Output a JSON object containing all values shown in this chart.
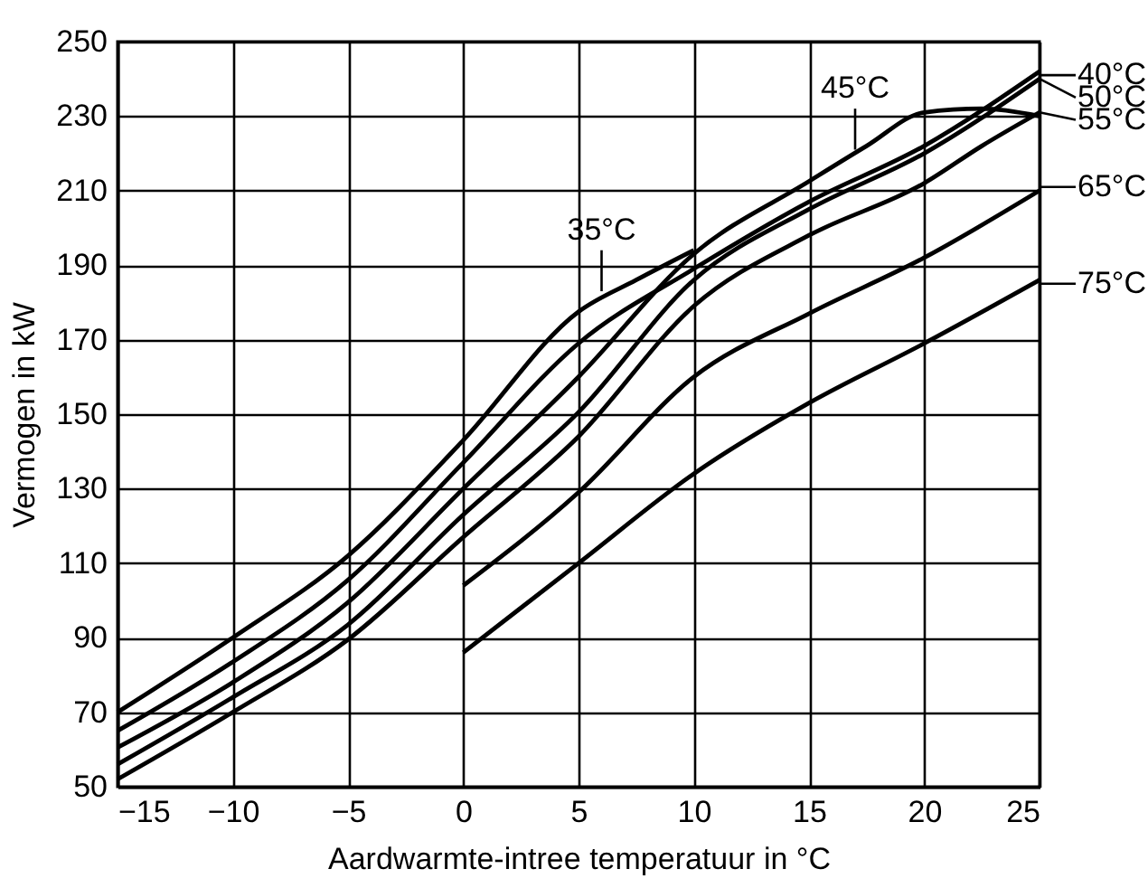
{
  "chart_data": {
    "type": "line",
    "xlabel": "Aardwarmte-intree temperatuur in °C",
    "ylabel": "Vermogen in kW",
    "x": [
      -15,
      -10,
      -5,
      0,
      5,
      7.5,
      10,
      15,
      17.5,
      20,
      22.5,
      25
    ],
    "series": [
      {
        "color": "#000000",
        "values": [
          70,
          90,
          112,
          143,
          177.5,
          186,
          194,
          null,
          null,
          null,
          null,
          null
        ]
      },
      {
        "color": "#000000",
        "values": [
          65,
          83.5,
          105.5,
          137,
          169,
          null,
          189,
          207,
          null,
          222,
          null,
          242
        ]
      },
      {
        "color": "#000000",
        "values": [
          60.5,
          78,
          99.5,
          130,
          160,
          null,
          193,
          212.5,
          222,
          231,
          232,
          230
        ]
      },
      {
        "color": "#000000",
        "values": [
          56,
          74,
          93.5,
          123,
          150.5,
          null,
          186,
          205,
          null,
          220,
          null,
          240
        ]
      },
      {
        "color": "#000000",
        "values": [
          52,
          70,
          89.5,
          117,
          144,
          null,
          179,
          198,
          null,
          212,
          222,
          231
        ]
      },
      {
        "color": "#000000",
        "values": [
          null,
          null,
          null,
          104,
          129,
          null,
          160,
          177,
          null,
          192,
          null,
          210
        ]
      },
      {
        "color": "#000000",
        "values": [
          null,
          null,
          null,
          86,
          110,
          null,
          134,
          153,
          null,
          169,
          null,
          186
        ]
      }
    ],
    "xlim": [
      -15,
      25
    ],
    "xticks": [
      -15,
      -10,
      -5,
      0,
      5,
      10,
      15,
      20,
      25
    ],
    "ylim": [
      50,
      250
    ],
    "yticks": [
      50,
      70,
      90,
      110,
      130,
      150,
      170,
      190,
      210,
      230,
      250
    ],
    "grid": true,
    "line_style": "solid",
    "marker": "none",
    "annotations": [
      {
        "text": "35°C",
        "x": 6,
        "y": 183
      },
      {
        "text": "45°C",
        "x": 17,
        "y": 221
      },
      {
        "text": "40°C",
        "x": 25,
        "y": 241
      },
      {
        "text": "50°C",
        "x": 25,
        "y": 240
      },
      {
        "text": "55°C",
        "x": 25,
        "y": 231
      },
      {
        "text": "65°C",
        "x": 25,
        "y": 211
      },
      {
        "text": "75°C",
        "x": 25,
        "y": 185
      }
    ]
  }
}
